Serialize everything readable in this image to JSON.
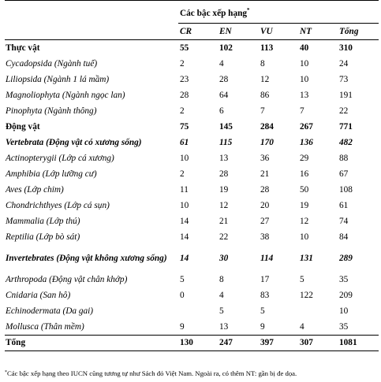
{
  "table": {
    "group_header": "Các bậc xếp hạng",
    "group_header_mark": "*",
    "columns": [
      "CR",
      "EN",
      "VU",
      "NT",
      "Tổng"
    ],
    "rows": [
      {
        "style": "bold",
        "name": "Thực vật",
        "values": [
          "55",
          "102",
          "113",
          "40",
          "310"
        ]
      },
      {
        "style": "ital",
        "name": "Cycadopsida (Ngành tuế)",
        "values": [
          "2",
          "4",
          "8",
          "10",
          "24"
        ]
      },
      {
        "style": "ital",
        "name": "Liliopsida (Ngành 1 lá mầm)",
        "values": [
          "23",
          "28",
          "12",
          "10",
          "73"
        ]
      },
      {
        "style": "ital",
        "name": "Magnoliophyta (Ngành ngọc lan)",
        "values": [
          "28",
          "64",
          "86",
          "13",
          "191"
        ]
      },
      {
        "style": "ital",
        "name": "Pinophyta (Ngành thông)",
        "values": [
          "2",
          "6",
          "7",
          "7",
          "22"
        ]
      },
      {
        "style": "bold",
        "name": "Động vật",
        "values": [
          "75",
          "145",
          "284",
          "267",
          "771"
        ]
      },
      {
        "style": "bi",
        "name": "Vertebrata (Động vật có xương sống)",
        "values": [
          "61",
          "115",
          "170",
          "136",
          "482"
        ]
      },
      {
        "style": "ital",
        "name": "Actinopterygii (Lớp cá xương)",
        "values": [
          "10",
          "13",
          "36",
          "29",
          "88"
        ]
      },
      {
        "style": "ital",
        "name": "Amphibia (Lớp lưỡng cư)",
        "values": [
          "2",
          "28",
          "21",
          "16",
          "67"
        ]
      },
      {
        "style": "ital",
        "name": "Aves (Lớp chim)",
        "values": [
          "11",
          "19",
          "28",
          "50",
          "108"
        ]
      },
      {
        "style": "ital",
        "name": "Chondrichthyes (Lớp cá sụn)",
        "values": [
          "10",
          "12",
          "20",
          "19",
          "61"
        ]
      },
      {
        "style": "ital",
        "name": "Mammalia (Lớp thú)",
        "values": [
          "14",
          "21",
          "27",
          "12",
          "74"
        ]
      },
      {
        "style": "ital",
        "name": "Reptilia (Lớp bò sát)",
        "values": [
          "14",
          "22",
          "38",
          "10",
          "84"
        ]
      },
      {
        "style": "bi wrap",
        "name": "Invertebrates (Động vật không xương sống)",
        "values": [
          "14",
          "30",
          "114",
          "131",
          "289"
        ]
      },
      {
        "style": "ital",
        "name": "Arthropoda (Động vật chân khớp)",
        "values": [
          "5",
          "8",
          "17",
          "5",
          "35"
        ]
      },
      {
        "style": "ital",
        "name": "Cnidaria (San hô)",
        "values": [
          "0",
          "4",
          "83",
          "122",
          "209"
        ]
      },
      {
        "style": "ital",
        "name": "Echinodermata (Da gai)",
        "values": [
          "",
          "5",
          "5",
          "",
          "10"
        ]
      },
      {
        "style": "ital",
        "name": "Mollusca (Thân mềm)",
        "values": [
          "9",
          "13",
          "9",
          "4",
          "35"
        ]
      },
      {
        "style": "total",
        "name": "Tổng",
        "values": [
          "130",
          "247",
          "397",
          "307",
          "1081"
        ]
      }
    ]
  },
  "footnote": {
    "mark": "*",
    "text": "Các bậc xếp hạng theo IUCN cũng tương tự như Sách đỏ Việt Nam. Ngoài ra, có thêm NT: gần bị đe dọa."
  }
}
